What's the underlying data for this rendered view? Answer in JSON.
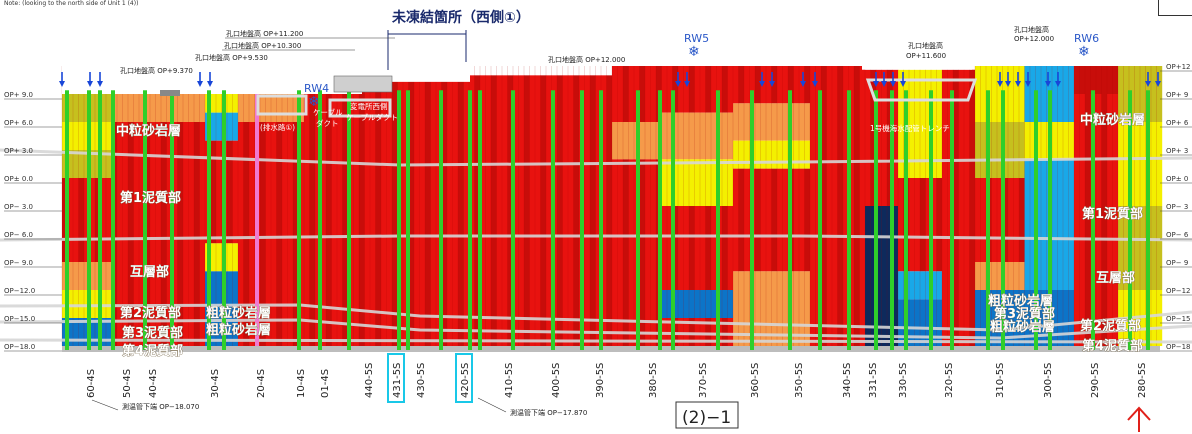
{
  "header": {
    "note": "Note: (looking to the north side of Unit 1 (4))",
    "title": "未凍結箇所（西側①）"
  },
  "elevation_labels": [
    "OP+ 9.0",
    "OP+ 6.0",
    "OP+ 3.0",
    "OP± 0.0",
    "OP− 3.0",
    "OP− 6.0",
    "OP− 9.0",
    "OP−12.0",
    "OP−15.0",
    "OP−18.0"
  ],
  "right_elevation_labels": [
    "OP+12",
    "OP+ 9",
    "OP+ 6",
    "OP+ 3",
    "OP± 0",
    "OP− 3",
    "OP− 6",
    "OP− 9",
    "OP−12",
    "OP−15",
    "OP−18"
  ],
  "ground_notes": {
    "gl_370": "孔口地盤高 OP+9.370",
    "gl_530": "孔口地盤高 OP+9.530",
    "gl_10300": "孔口地盤高 OP+10.300",
    "gl_11200": "孔口地盤高 OP+11.200",
    "gl_12000": "孔口地盤高 OP+12.000",
    "gl_11600_a": "孔口地盤高",
    "gl_11600_b": "OP+11.600",
    "gl_12000r_a": "孔口地盤高",
    "gl_12000r_b": "OP+12.000"
  },
  "rw_labels": [
    "RW4",
    "RW5",
    "RW6"
  ],
  "structure_notes": {
    "cable_duct_a": "ケーブル",
    "cable_duct_b": "ダクト",
    "trans_a": "変電所西側",
    "trans_b": "ケーブルダクト",
    "drain": "(排水路①)",
    "trench": "1号機海水配管トレンチ"
  },
  "layer_labels": {
    "medium_sandstone_left": "中粒砂岩層",
    "mudstone1_left": "第1泥質部",
    "alternating_left": "互層部",
    "mudstone2_left": "第2泥質部",
    "coarse_left": "粗粒砂岩層",
    "mudstone3_left": "第3泥質部",
    "coarse_left2": "粗粒砂岩層",
    "mudstone4_left": "第4泥質部",
    "medium_sandstone_right": "中粒砂岩層",
    "mudstone1_right": "第1泥質部",
    "alternating_right": "互層部",
    "coarse_right": "粗粒砂岩層",
    "mudstone3_right": "第3泥質部",
    "coarse_right2": "粗粒砂岩層",
    "mudstone2_right": "第2泥質部",
    "mudstone4_right": "第4泥質部"
  },
  "borehole_labels": [
    "60-4S",
    "50-4S",
    "40-4S",
    "30-4S",
    "20-4S",
    "10-4S",
    "01-4S",
    "440-5S",
    "431-5S",
    "430-5S",
    "420-5S",
    "410-5S",
    "400-5S",
    "390-5S",
    "380-5S",
    "370-5S",
    "360-5S",
    "350-5S",
    "340-5S",
    "331-5S",
    "330-5S",
    "320-5S",
    "310-5S",
    "300-5S",
    "290-5S",
    "280-5S"
  ],
  "highlighted_boreholes": [
    "431-5S",
    "420-5S"
  ],
  "bottom_notes": {
    "pipe_left": "測温管下端 OP−18.070",
    "pipe_right": "測温管下端 OP−17.870"
  },
  "section_label": "(2)−1",
  "colors": {
    "red": "#e8120f",
    "dark_red": "#c80d0a",
    "orange": "#f59a4a",
    "yellow": "#f4f000",
    "olive": "#c6c01e",
    "light_blue": "#19a8e8",
    "blue": "#0c74c8",
    "navy": "#0d2a5c",
    "green_pipe": "#2fcf2a",
    "pink_pipe": "#f07ad0",
    "arrow_blue": "#1846d8",
    "cyan_box": "#19c8e8"
  }
}
